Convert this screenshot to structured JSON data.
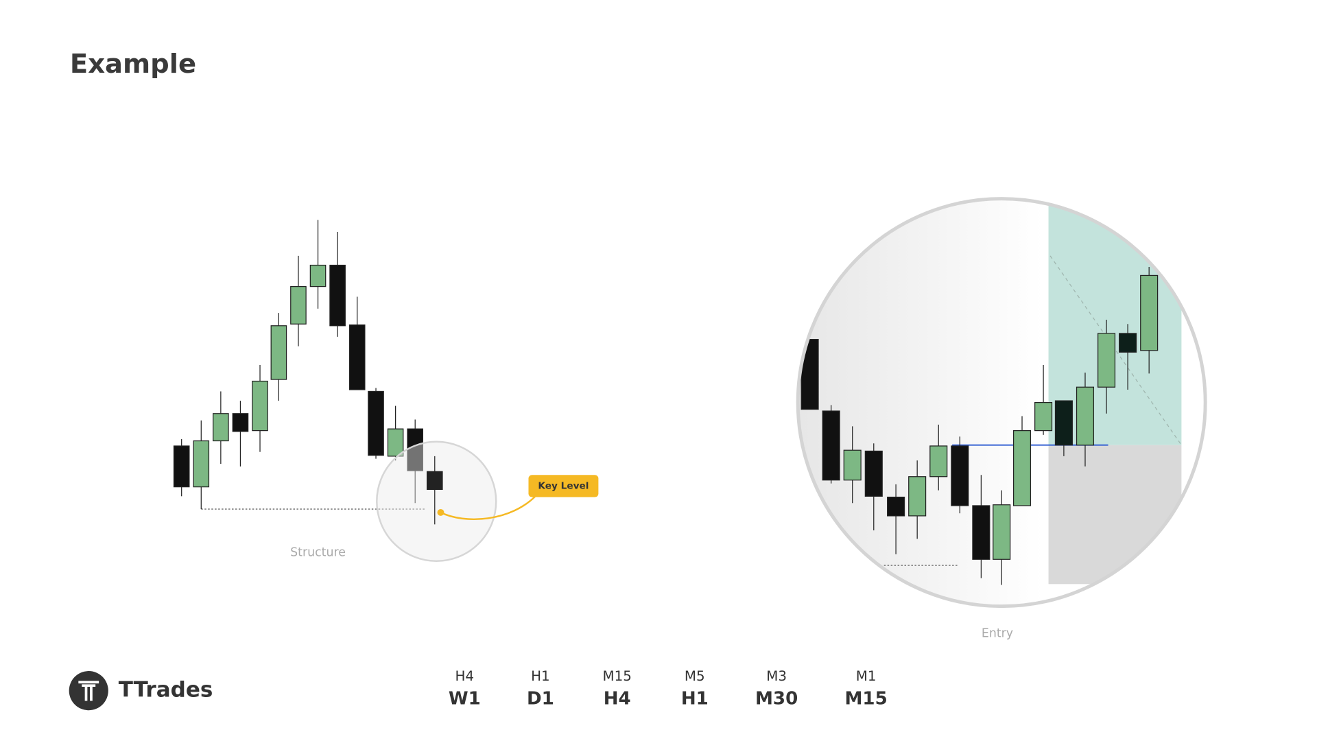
{
  "title": "Example",
  "labels": {
    "structure": "Structure",
    "key_level": "Key Level",
    "entry": "Entry"
  },
  "brand": "TTrades",
  "timeframes": [
    {
      "htf": "W1",
      "ltf": "H4"
    },
    {
      "htf": "D1",
      "ltf": "H1"
    },
    {
      "htf": "H4",
      "ltf": "M15"
    },
    {
      "htf": "H1",
      "ltf": "M5"
    },
    {
      "htf": "M30",
      "ltf": "M3"
    },
    {
      "htf": "M15",
      "ltf": "M1"
    }
  ]
}
